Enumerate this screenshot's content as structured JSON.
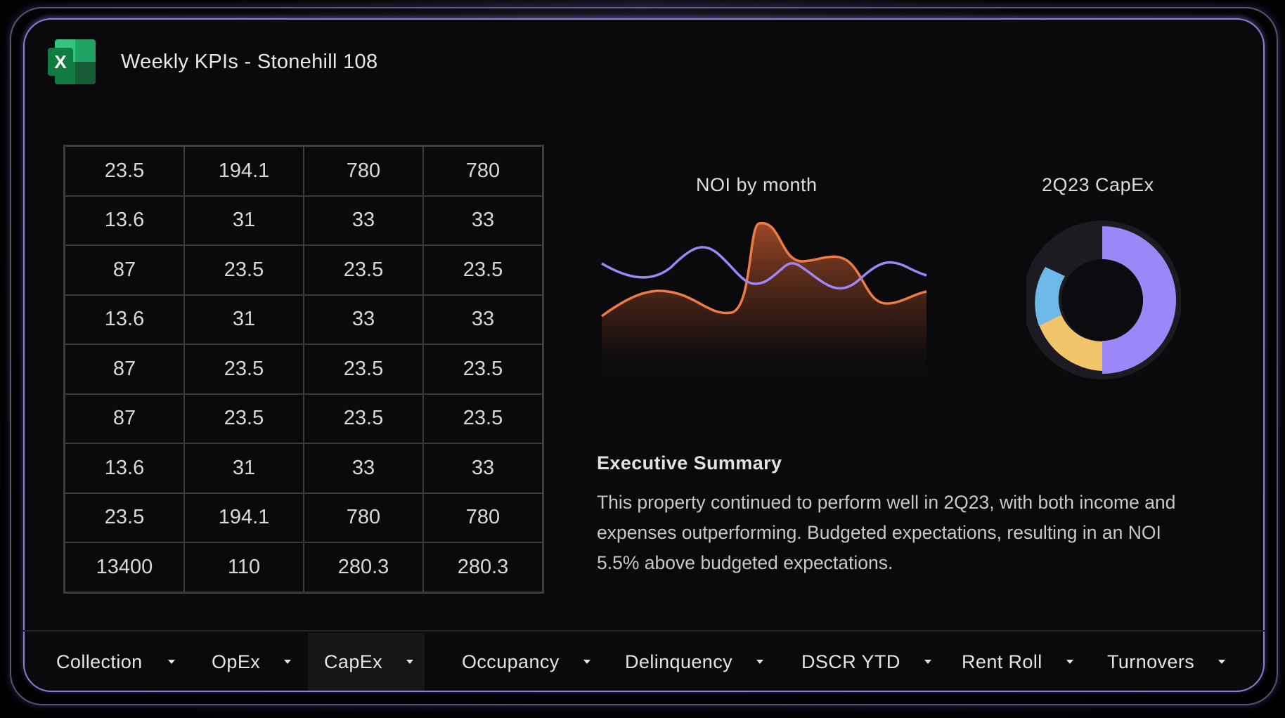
{
  "header": {
    "app_icon": "excel-icon",
    "app_icon_letter": "X",
    "title": "Weekly KPIs - Stonehill 108"
  },
  "table": {
    "rows": [
      [
        "23.5",
        "194.1",
        "780",
        "780"
      ],
      [
        "13.6",
        "31",
        "33",
        "33"
      ],
      [
        "87",
        "23.5",
        "23.5",
        "23.5"
      ],
      [
        "13.6",
        "31",
        "33",
        "33"
      ],
      [
        "87",
        "23.5",
        "23.5",
        "23.5"
      ],
      [
        "87",
        "23.5",
        "23.5",
        "23.5"
      ],
      [
        "13.6",
        "31",
        "33",
        "33"
      ],
      [
        "23.5",
        "194.1",
        "780",
        "780"
      ],
      [
        "13400",
        "110",
        "280.3",
        "280.3"
      ]
    ]
  },
  "noi_chart": {
    "title": "NOI by month",
    "colors": {
      "purple": "#9b87f5",
      "orange": "#ee7a45"
    }
  },
  "capex_chart": {
    "title": "2Q23 CapEx",
    "colors": [
      "#9b87f5",
      "#f2c56b",
      "#6fb8ea",
      "#1c1b22"
    ]
  },
  "summary": {
    "heading": "Executive Summary",
    "body": "This property continued to perform well in 2Q23, with both income and expenses outperforming. Budgeted expectations, resulting in an NOI 5.5% above budgeted expectations."
  },
  "tabs": [
    {
      "label": "Collection",
      "active": false
    },
    {
      "label": "OpEx",
      "active": false
    },
    {
      "label": "CapEx",
      "active": true
    },
    {
      "label": "Occupancy",
      "active": false
    },
    {
      "label": "Delinquency",
      "active": false
    },
    {
      "label": "DSCR YTD",
      "active": false
    },
    {
      "label": "Rent Roll",
      "active": false
    },
    {
      "label": "Turnovers",
      "active": false
    }
  ]
}
